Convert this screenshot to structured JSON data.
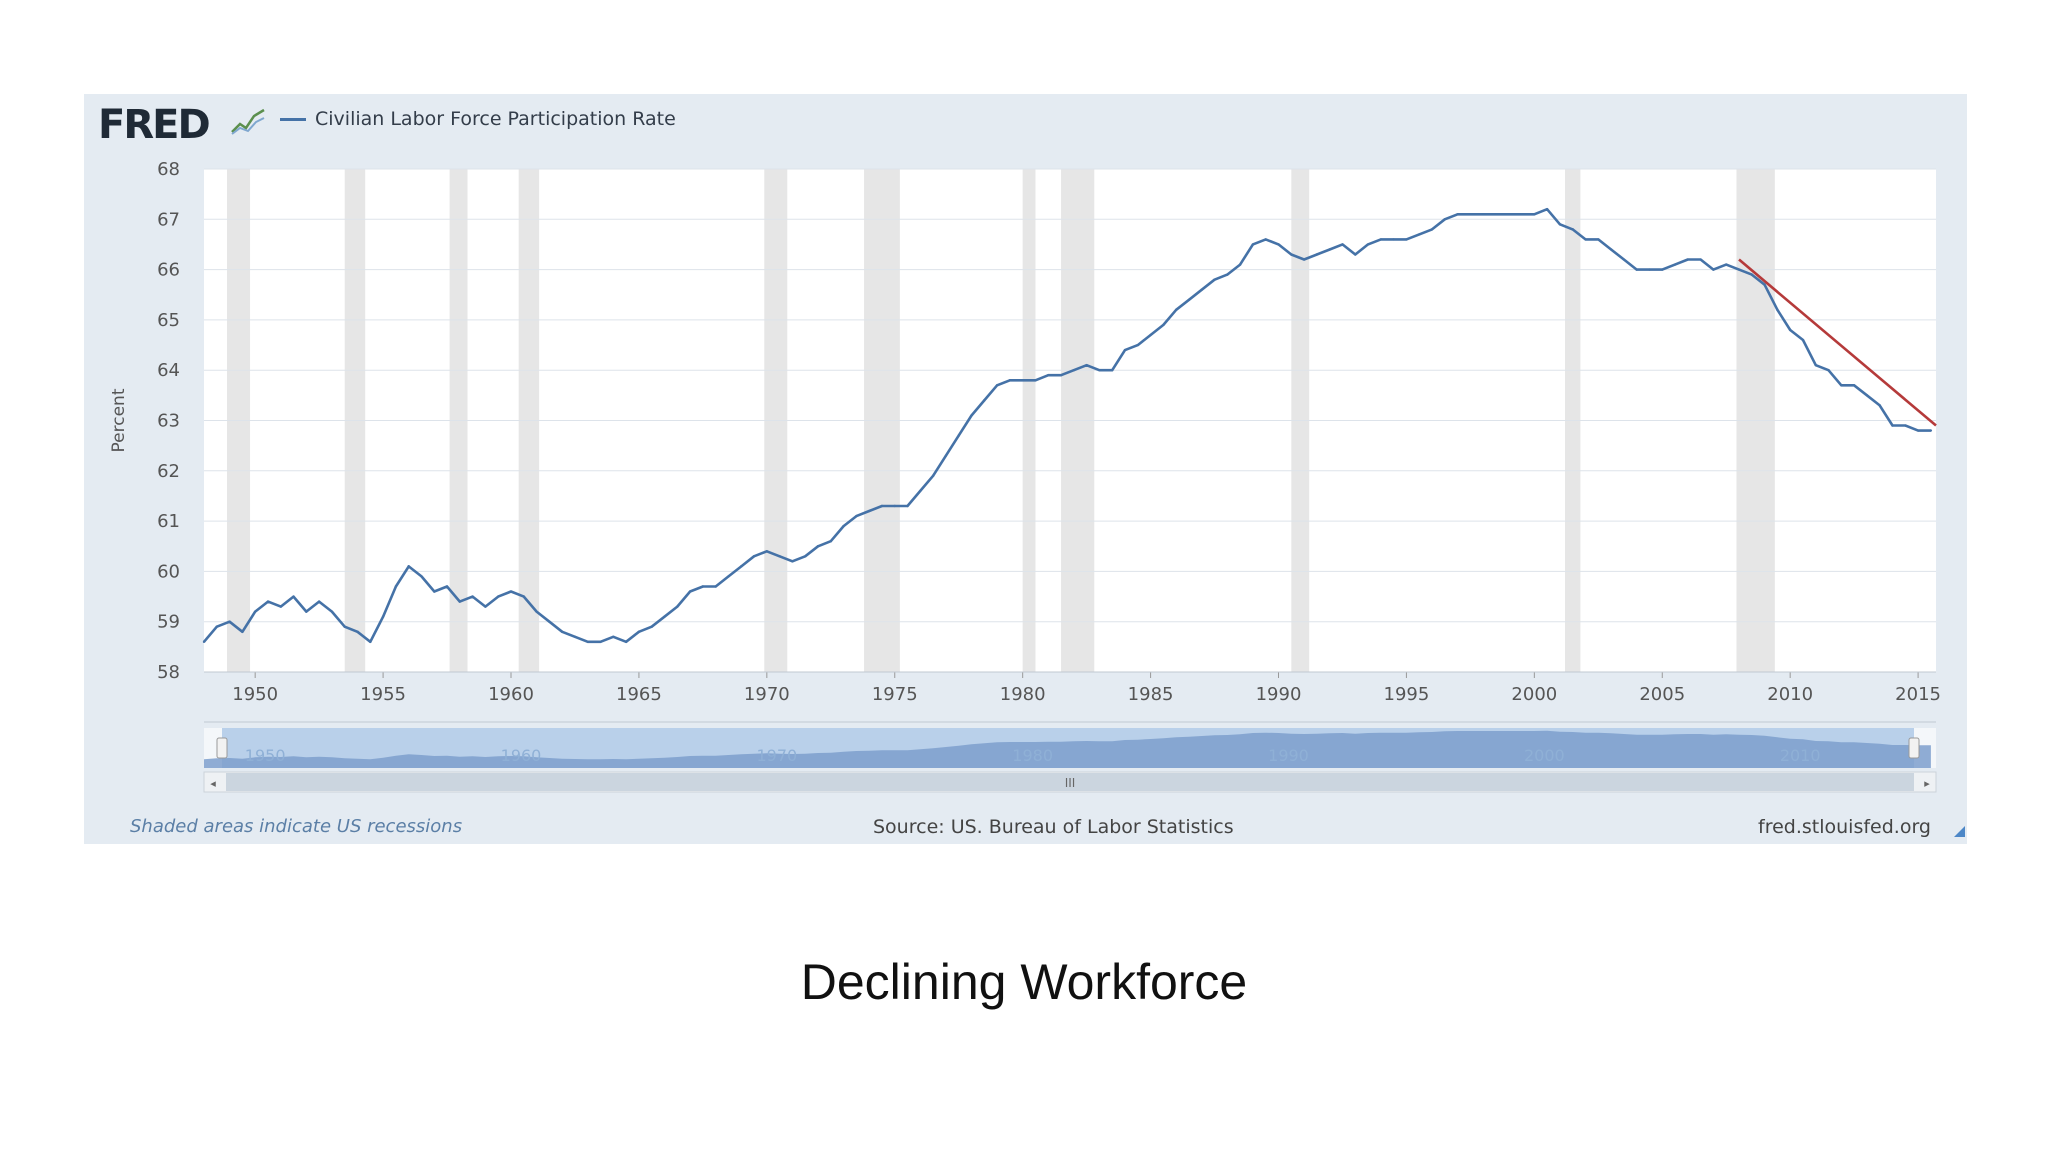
{
  "header": {
    "logo_text": "FRED",
    "logo_icon": "line-graph-icon",
    "legend_label": "Civilian Labor Force Participation Rate"
  },
  "footer": {
    "recession_note": "Shaded areas indicate US recessions",
    "source": "Source: US. Bureau of Labor Statistics",
    "site": "fred.stlouisfed.org"
  },
  "navigator": {
    "year_labels": [
      "1950",
      "1960",
      "1970",
      "1980",
      "1990",
      "2000",
      "2010"
    ],
    "scrollbar_grip": "III"
  },
  "slide_title": "Declining Workforce",
  "chart_data": {
    "type": "line",
    "title": "",
    "xlabel": "",
    "ylabel": "Percent",
    "xlim": [
      1948,
      2015.7
    ],
    "ylim": [
      58,
      68
    ],
    "x_ticks": [
      "1950",
      "1955",
      "1960",
      "1965",
      "1970",
      "1975",
      "1980",
      "1985",
      "1990",
      "1995",
      "2000",
      "2005",
      "2010",
      "2015"
    ],
    "y_ticks": [
      "58",
      "59",
      "60",
      "61",
      "62",
      "63",
      "64",
      "65",
      "66",
      "67",
      "68"
    ],
    "grid": true,
    "legend": "top-left",
    "series": [
      {
        "name": "Civilian Labor Force Participation Rate",
        "color": "#4572a7",
        "x": [
          1948.0,
          1948.5,
          1949.0,
          1949.5,
          1950.0,
          1950.5,
          1951.0,
          1951.5,
          1952.0,
          1952.5,
          1953.0,
          1953.5,
          1954.0,
          1954.5,
          1955.0,
          1955.5,
          1956.0,
          1956.5,
          1957.0,
          1957.5,
          1958.0,
          1958.5,
          1959.0,
          1959.5,
          1960.0,
          1960.5,
          1961.0,
          1961.5,
          1962.0,
          1962.5,
          1963.0,
          1963.5,
          1964.0,
          1964.5,
          1965.0,
          1965.5,
          1966.0,
          1966.5,
          1967.0,
          1967.5,
          1968.0,
          1968.5,
          1969.0,
          1969.5,
          1970.0,
          1970.5,
          1971.0,
          1971.5,
          1972.0,
          1972.5,
          1973.0,
          1973.5,
          1974.0,
          1974.5,
          1975.0,
          1975.5,
          1976.0,
          1976.5,
          1977.0,
          1977.5,
          1978.0,
          1978.5,
          1979.0,
          1979.5,
          1980.0,
          1980.5,
          1981.0,
          1981.5,
          1982.0,
          1982.5,
          1983.0,
          1983.5,
          1984.0,
          1984.5,
          1985.0,
          1985.5,
          1986.0,
          1986.5,
          1987.0,
          1987.5,
          1988.0,
          1988.5,
          1989.0,
          1989.5,
          1990.0,
          1990.5,
          1991.0,
          1991.5,
          1992.0,
          1992.5,
          1993.0,
          1993.5,
          1994.0,
          1994.5,
          1995.0,
          1995.5,
          1996.0,
          1996.5,
          1997.0,
          1997.5,
          1998.0,
          1998.5,
          1999.0,
          1999.5,
          2000.0,
          2000.5,
          2001.0,
          2001.5,
          2002.0,
          2002.5,
          2003.0,
          2003.5,
          2004.0,
          2004.5,
          2005.0,
          2005.5,
          2006.0,
          2006.5,
          2007.0,
          2007.5,
          2008.0,
          2008.5,
          2009.0,
          2009.5,
          2010.0,
          2010.5,
          2011.0,
          2011.5,
          2012.0,
          2012.5,
          2013.0,
          2013.5,
          2014.0,
          2014.5,
          2015.0,
          2015.5
        ],
        "y": [
          58.6,
          58.9,
          59.0,
          58.8,
          59.2,
          59.4,
          59.3,
          59.5,
          59.2,
          59.4,
          59.2,
          58.9,
          58.8,
          58.6,
          59.1,
          59.7,
          60.1,
          59.9,
          59.6,
          59.7,
          59.4,
          59.5,
          59.3,
          59.5,
          59.6,
          59.5,
          59.2,
          59.0,
          58.8,
          58.7,
          58.6,
          58.6,
          58.7,
          58.6,
          58.8,
          58.9,
          59.1,
          59.3,
          59.6,
          59.7,
          59.7,
          59.9,
          60.1,
          60.3,
          60.4,
          60.3,
          60.2,
          60.3,
          60.5,
          60.6,
          60.9,
          61.1,
          61.2,
          61.3,
          61.3,
          61.3,
          61.6,
          61.9,
          62.3,
          62.7,
          63.1,
          63.4,
          63.7,
          63.8,
          63.8,
          63.8,
          63.9,
          63.9,
          64.0,
          64.1,
          64.0,
          64.0,
          64.4,
          64.5,
          64.7,
          64.9,
          65.2,
          65.4,
          65.6,
          65.8,
          65.9,
          66.1,
          66.5,
          66.6,
          66.5,
          66.3,
          66.2,
          66.3,
          66.4,
          66.5,
          66.3,
          66.5,
          66.6,
          66.6,
          66.6,
          66.7,
          66.8,
          67.0,
          67.1,
          67.1,
          67.1,
          67.1,
          67.1,
          67.1,
          67.1,
          67.2,
          66.9,
          66.8,
          66.6,
          66.6,
          66.4,
          66.2,
          66.0,
          66.0,
          66.0,
          66.1,
          66.2,
          66.2,
          66.0,
          66.1,
          66.0,
          65.9,
          65.7,
          65.2,
          64.8,
          64.6,
          64.1,
          64.0,
          63.7,
          63.7,
          63.5,
          63.3,
          62.9,
          62.9,
          62.8,
          62.8
        ]
      }
    ],
    "trend_line": {
      "color": "#b53a3a",
      "x": [
        2008.0,
        2015.7
      ],
      "y": [
        66.2,
        62.9
      ]
    },
    "recessions": [
      [
        1948.9,
        1949.8
      ],
      [
        1953.5,
        1954.3
      ],
      [
        1957.6,
        1958.3
      ],
      [
        1960.3,
        1961.1
      ],
      [
        1969.9,
        1970.8
      ],
      [
        1973.8,
        1975.2
      ],
      [
        1980.0,
        1980.5
      ],
      [
        1981.5,
        1982.8
      ],
      [
        1990.5,
        1991.2
      ],
      [
        2001.2,
        2001.8
      ],
      [
        2007.9,
        2009.4
      ]
    ]
  }
}
